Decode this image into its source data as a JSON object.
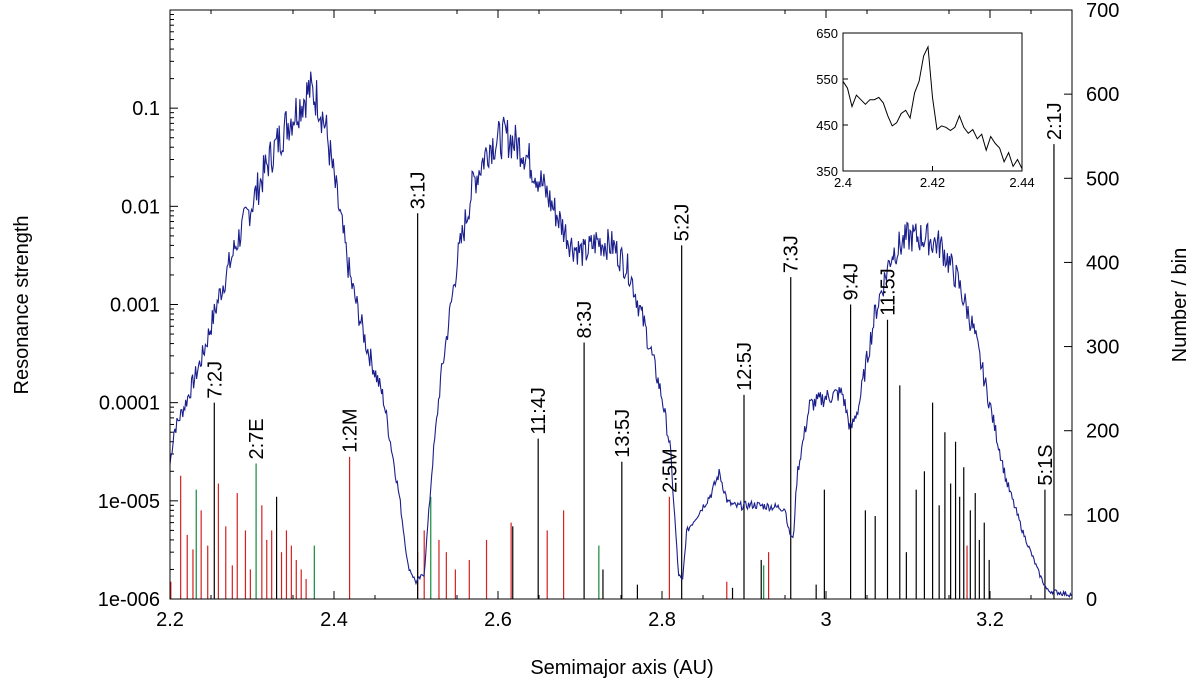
{
  "chart_data": {
    "type": "line",
    "xlabel": "Semimajor axis (AU)",
    "ylabel_left": "Resonance strength",
    "ylabel_right": "Number / bin",
    "x_ticks": [
      "2.2",
      "2.4",
      "2.6",
      "2.8",
      "3",
      "3.2"
    ],
    "x_tick_values": [
      2.2,
      2.4,
      2.6,
      2.8,
      3.0,
      3.2
    ],
    "xlim": [
      2.2,
      3.3
    ],
    "ylim_left": [
      1e-06,
      1
    ],
    "yscale_left": "log",
    "y_left_ticks": [
      "1e-006",
      "1e-005",
      "0.0001",
      "0.001",
      "0.01",
      "0.1"
    ],
    "y_left_tick_values": [
      1e-06,
      1e-05,
      0.0001,
      0.001,
      0.01,
      0.1
    ],
    "ylim_right": [
      0,
      700
    ],
    "y_right_ticks": [
      "0",
      "100",
      "200",
      "300",
      "400",
      "500",
      "600",
      "700"
    ],
    "y_right_tick_values": [
      0,
      100,
      200,
      300,
      400,
      500,
      600,
      700
    ],
    "series_color": "#1a1f8c",
    "colors": {
      "jupiter": "#000000",
      "mars": "#d42020",
      "earth": "#138a3a",
      "saturn": "#000000"
    },
    "distribution_knots": [
      [
        2.2,
        160
      ],
      [
        2.205,
        200
      ],
      [
        2.22,
        235
      ],
      [
        2.24,
        290
      ],
      [
        2.26,
        360
      ],
      [
        2.28,
        420
      ],
      [
        2.3,
        470
      ],
      [
        2.32,
        520
      ],
      [
        2.34,
        560
      ],
      [
        2.36,
        590
      ],
      [
        2.37,
        605
      ],
      [
        2.38,
        595
      ],
      [
        2.39,
        560
      ],
      [
        2.4,
        500
      ],
      [
        2.42,
        380
      ],
      [
        2.44,
        300
      ],
      [
        2.46,
        240
      ],
      [
        2.48,
        120
      ],
      [
        2.49,
        40
      ],
      [
        2.5,
        20
      ],
      [
        2.51,
        30
      ],
      [
        2.52,
        160
      ],
      [
        2.53,
        260
      ],
      [
        2.55,
        400
      ],
      [
        2.57,
        495
      ],
      [
        2.59,
        540
      ],
      [
        2.61,
        550
      ],
      [
        2.63,
        535
      ],
      [
        2.65,
        500
      ],
      [
        2.67,
        460
      ],
      [
        2.69,
        420
      ],
      [
        2.705,
        410
      ],
      [
        2.72,
        425
      ],
      [
        2.74,
        420
      ],
      [
        2.76,
        390
      ],
      [
        2.78,
        320
      ],
      [
        2.8,
        240
      ],
      [
        2.81,
        180
      ],
      [
        2.82,
        30
      ],
      [
        2.825,
        20
      ],
      [
        2.83,
        80
      ],
      [
        2.85,
        110
      ],
      [
        2.86,
        125
      ],
      [
        2.87,
        150
      ],
      [
        2.88,
        115
      ],
      [
        2.89,
        110
      ],
      [
        2.91,
        112
      ],
      [
        2.93,
        110
      ],
      [
        2.95,
        108
      ],
      [
        2.955,
        80
      ],
      [
        2.96,
        70
      ],
      [
        2.965,
        150
      ],
      [
        2.98,
        230
      ],
      [
        3.0,
        240
      ],
      [
        3.02,
        245
      ],
      [
        3.03,
        200
      ],
      [
        3.04,
        230
      ],
      [
        3.06,
        340
      ],
      [
        3.08,
        410
      ],
      [
        3.1,
        430
      ],
      [
        3.12,
        430
      ],
      [
        3.14,
        420
      ],
      [
        3.16,
        380
      ],
      [
        3.18,
        320
      ],
      [
        3.2,
        230
      ],
      [
        3.22,
        140
      ],
      [
        3.24,
        80
      ],
      [
        3.26,
        30
      ],
      [
        3.27,
        10
      ],
      [
        3.3,
        5
      ]
    ],
    "inset": {
      "xlim": [
        2.4,
        2.44
      ],
      "ylim": [
        350,
        650
      ],
      "x_ticks": [
        "2.4",
        "2.42",
        "2.44"
      ],
      "x_tick_values": [
        2.4,
        2.42,
        2.44
      ],
      "y_ticks": [
        "350",
        "450",
        "550",
        "650"
      ],
      "y_tick_values": [
        350,
        450,
        550,
        650
      ],
      "x": [
        2.4,
        2.401,
        2.402,
        2.403,
        2.404,
        2.405,
        2.406,
        2.407,
        2.408,
        2.409,
        2.41,
        2.411,
        2.412,
        2.413,
        2.414,
        2.415,
        2.416,
        2.417,
        2.418,
        2.419,
        2.42,
        2.421,
        2.422,
        2.423,
        2.424,
        2.425,
        2.426,
        2.427,
        2.428,
        2.429,
        2.43,
        2.431,
        2.432,
        2.433,
        2.434,
        2.435,
        2.436,
        2.437,
        2.438,
        2.439,
        2.44
      ],
      "y": [
        545,
        530,
        490,
        515,
        505,
        495,
        505,
        505,
        510,
        498,
        470,
        448,
        455,
        475,
        482,
        465,
        520,
        545,
        600,
        620,
        510,
        440,
        448,
        445,
        438,
        445,
        470,
        445,
        432,
        440,
        420,
        430,
        395,
        425,
        410,
        400,
        370,
        390,
        360,
        375,
        355
      ]
    },
    "labeled_resonances": [
      {
        "label": "7:2J",
        "a": 2.254,
        "strength": 0.0001,
        "color": "#000000"
      },
      {
        "label": "2:7E",
        "a": 2.305,
        "strength": 2.4e-05,
        "color": "#138a3a"
      },
      {
        "label": "1:2M",
        "a": 2.419,
        "strength": 2.8e-05,
        "color": "#d42020"
      },
      {
        "label": "3:1J",
        "a": 2.502,
        "strength": 0.0085,
        "color": "#000000"
      },
      {
        "label": "11:4J",
        "a": 2.649,
        "strength": 4.3e-05,
        "color": "#000000"
      },
      {
        "label": "8:3J",
        "a": 2.705,
        "strength": 0.00041,
        "color": "#000000"
      },
      {
        "label": "13:5J",
        "a": 2.751,
        "strength": 2.5e-05,
        "color": "#000000"
      },
      {
        "label": "2:5M",
        "a": 2.809,
        "strength": 1.1e-05,
        "color": "#d42020"
      },
      {
        "label": "5:2J",
        "a": 2.824,
        "strength": 0.004,
        "color": "#000000"
      },
      {
        "label": "12:5J",
        "a": 2.9,
        "strength": 0.00012,
        "color": "#000000"
      },
      {
        "label": "7:3J",
        "a": 2.957,
        "strength": 0.0019,
        "color": "#000000"
      },
      {
        "label": "9:4J",
        "a": 3.03,
        "strength": 0.001,
        "color": "#000000"
      },
      {
        "label": "11:5J",
        "a": 3.075,
        "strength": 0.0007,
        "color": "#000000"
      },
      {
        "label": "5:1S",
        "a": 3.267,
        "strength": 1.3e-05,
        "color": "#000000"
      },
      {
        "label": "2:1J",
        "a": 3.278,
        "strength": 0.043,
        "color": "#000000"
      }
    ],
    "minor_resonances": [
      {
        "a": 2.201,
        "strength": 1.5e-06,
        "color": "#d42020"
      },
      {
        "a": 2.213,
        "strength": 1.8e-05,
        "color": "#d42020"
      },
      {
        "a": 2.221,
        "strength": 4.5e-06,
        "color": "#d42020"
      },
      {
        "a": 2.228,
        "strength": 3.2e-06,
        "color": "#d42020"
      },
      {
        "a": 2.232,
        "strength": 1.3e-05,
        "color": "#138a3a"
      },
      {
        "a": 2.238,
        "strength": 8e-06,
        "color": "#d42020"
      },
      {
        "a": 2.246,
        "strength": 3.5e-06,
        "color": "#d42020"
      },
      {
        "a": 2.259,
        "strength": 1.5e-05,
        "color": "#d42020"
      },
      {
        "a": 2.268,
        "strength": 5.5e-06,
        "color": "#d42020"
      },
      {
        "a": 2.276,
        "strength": 2.2e-06,
        "color": "#d42020"
      },
      {
        "a": 2.282,
        "strength": 1.2e-05,
        "color": "#d42020"
      },
      {
        "a": 2.292,
        "strength": 5e-06,
        "color": "#d42020"
      },
      {
        "a": 2.298,
        "strength": 2e-06,
        "color": "#d42020"
      },
      {
        "a": 2.312,
        "strength": 9e-06,
        "color": "#d42020"
      },
      {
        "a": 2.318,
        "strength": 4e-06,
        "color": "#d42020"
      },
      {
        "a": 2.324,
        "strength": 5e-06,
        "color": "#d42020"
      },
      {
        "a": 2.33,
        "strength": 1.1e-05,
        "color": "#000000"
      },
      {
        "a": 2.336,
        "strength": 3e-06,
        "color": "#d42020"
      },
      {
        "a": 2.342,
        "strength": 5e-06,
        "color": "#d42020"
      },
      {
        "a": 2.348,
        "strength": 3.5e-06,
        "color": "#d42020"
      },
      {
        "a": 2.354,
        "strength": 2.5e-06,
        "color": "#d42020"
      },
      {
        "a": 2.36,
        "strength": 2e-06,
        "color": "#d42020"
      },
      {
        "a": 2.366,
        "strength": 1.6e-06,
        "color": "#d42020"
      },
      {
        "a": 2.376,
        "strength": 3.5e-06,
        "color": "#138a3a"
      },
      {
        "a": 2.502,
        "strength": 3e-06,
        "color": "#d42020"
      },
      {
        "a": 2.51,
        "strength": 5e-06,
        "color": "#d42020"
      },
      {
        "a": 2.518,
        "strength": 1.1e-05,
        "color": "#138a3a"
      },
      {
        "a": 2.528,
        "strength": 4e-06,
        "color": "#d42020"
      },
      {
        "a": 2.537,
        "strength": 3e-06,
        "color": "#d42020"
      },
      {
        "a": 2.548,
        "strength": 2e-06,
        "color": "#d42020"
      },
      {
        "a": 2.565,
        "strength": 2.5e-06,
        "color": "#d42020"
      },
      {
        "a": 2.586,
        "strength": 4e-06,
        "color": "#d42020"
      },
      {
        "a": 2.616,
        "strength": 6e-06,
        "color": "#d42020"
      },
      {
        "a": 2.618,
        "strength": 5.5e-06,
        "color": "#000000"
      },
      {
        "a": 2.66,
        "strength": 5e-06,
        "color": "#d42020"
      },
      {
        "a": 2.68,
        "strength": 8e-06,
        "color": "#d42020"
      },
      {
        "a": 2.723,
        "strength": 3.5e-06,
        "color": "#138a3a"
      },
      {
        "a": 2.728,
        "strength": 2e-06,
        "color": "#000000"
      },
      {
        "a": 2.77,
        "strength": 1.4e-06,
        "color": "#000000"
      },
      {
        "a": 2.879,
        "strength": 1.5e-06,
        "color": "#d42020"
      },
      {
        "a": 2.886,
        "strength": 1.3e-06,
        "color": "#000000"
      },
      {
        "a": 2.921,
        "strength": 2.5e-06,
        "color": "#000000"
      },
      {
        "a": 2.924,
        "strength": 2.2e-06,
        "color": "#138a3a"
      },
      {
        "a": 2.93,
        "strength": 3e-06,
        "color": "#d42020"
      },
      {
        "a": 2.988,
        "strength": 1.4e-06,
        "color": "#000000"
      },
      {
        "a": 2.998,
        "strength": 1.3e-05,
        "color": "#000000"
      },
      {
        "a": 3.048,
        "strength": 8e-06,
        "color": "#000000"
      },
      {
        "a": 3.06,
        "strength": 7e-06,
        "color": "#000000"
      },
      {
        "a": 3.09,
        "strength": 0.00015,
        "color": "#000000"
      },
      {
        "a": 3.098,
        "strength": 3e-06,
        "color": "#000000"
      },
      {
        "a": 3.11,
        "strength": 1.3e-05,
        "color": "#000000"
      },
      {
        "a": 3.12,
        "strength": 2e-05,
        "color": "#000000"
      },
      {
        "a": 3.13,
        "strength": 0.0001,
        "color": "#000000"
      },
      {
        "a": 3.138,
        "strength": 9e-06,
        "color": "#000000"
      },
      {
        "a": 3.145,
        "strength": 5e-05,
        "color": "#000000"
      },
      {
        "a": 3.152,
        "strength": 1.5e-05,
        "color": "#000000"
      },
      {
        "a": 3.158,
        "strength": 4e-05,
        "color": "#000000"
      },
      {
        "a": 3.163,
        "strength": 1.1e-05,
        "color": "#000000"
      },
      {
        "a": 3.168,
        "strength": 2.2e-05,
        "color": "#000000"
      },
      {
        "a": 3.172,
        "strength": 3.5e-06,
        "color": "#d42020"
      },
      {
        "a": 3.176,
        "strength": 8e-06,
        "color": "#000000"
      },
      {
        "a": 3.182,
        "strength": 1.2e-05,
        "color": "#000000"
      },
      {
        "a": 3.187,
        "strength": 4e-06,
        "color": "#000000"
      },
      {
        "a": 3.193,
        "strength": 6e-06,
        "color": "#000000"
      },
      {
        "a": 3.199,
        "strength": 2.5e-06,
        "color": "#000000"
      }
    ]
  }
}
